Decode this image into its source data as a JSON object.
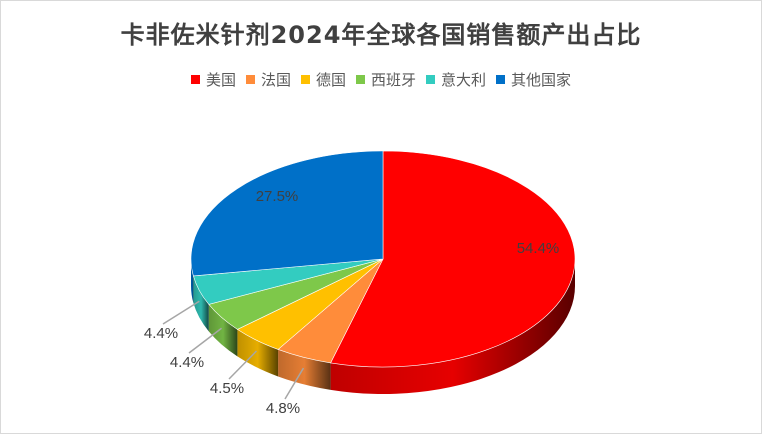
{
  "chart_data": {
    "type": "pie",
    "title": "卡非佐米针剂2024年全球各国销售额产出占比",
    "style": "3d",
    "legend_position": "top",
    "categories": [
      "美国",
      "法国",
      "德国",
      "西班牙",
      "意大利",
      "其他国家"
    ],
    "values": [
      54.4,
      4.8,
      4.5,
      4.4,
      4.4,
      27.5
    ],
    "labels": [
      "54.4%",
      "4.8%",
      "4.5%",
      "4.4%",
      "4.4%",
      "27.5%"
    ],
    "colors": [
      "#ff0000",
      "#ff8c3a",
      "#ffc000",
      "#7ec84a",
      "#33ccc0",
      "#0070c8"
    ]
  }
}
